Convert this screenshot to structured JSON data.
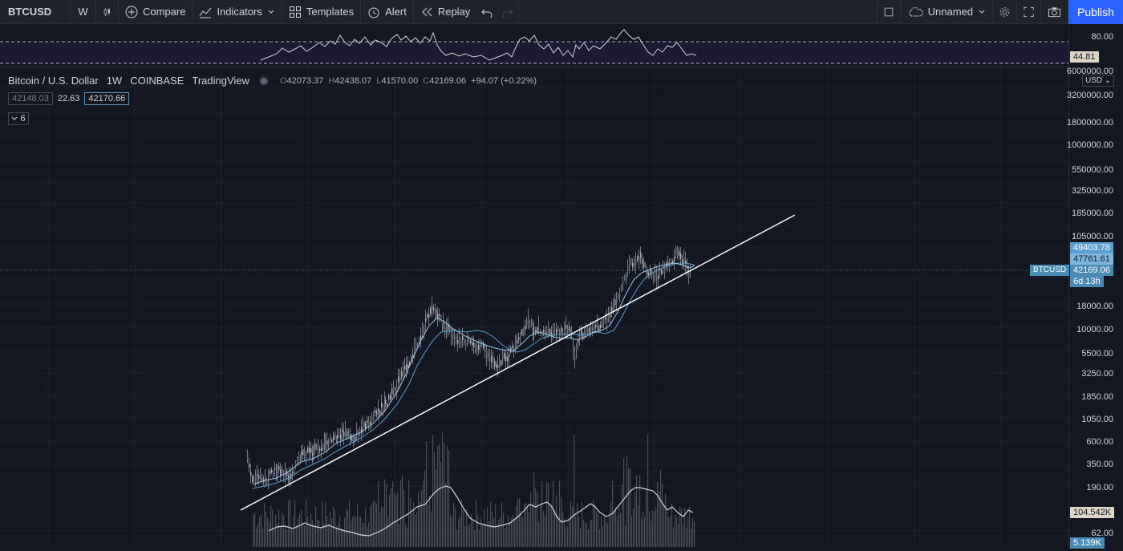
{
  "toolbar": {
    "symbol": "BTCUSD",
    "interval": "W",
    "compare_label": "Compare",
    "indicators_label": "Indicators",
    "templates_label": "Templates",
    "alert_label": "Alert",
    "replay_label": "Replay",
    "layout_name": "Unnamed",
    "publish_label": "Publish"
  },
  "legend": {
    "title": "Bitcoin / U.S. Dollar",
    "interval": "1W",
    "exchange": "COINBASE",
    "source": "TradingView",
    "open_label": "O",
    "open": "42073.37",
    "high_label": "H",
    "high": "42438.07",
    "low_label": "L",
    "low": "41570.00",
    "close_label": "C",
    "close": "42169.06",
    "change": "+94.07 (+0.22%)"
  },
  "indicator_row": {
    "value1": "42148.03",
    "value2": "22.63",
    "value3": "42170.66",
    "collapsed_count": "6"
  },
  "rsi_axis": {
    "top": "80.00",
    "current": "44.81"
  },
  "price_axis": {
    "currency": "USD",
    "ticks": [
      "6000000.00",
      "3200000.00",
      "1800000.00",
      "1000000.00",
      "550000.00",
      "325000.00",
      "185000.00",
      "105000.00",
      "18000.00",
      "10000.00",
      "5500.00",
      "3250.00",
      "1850.00",
      "1050.00",
      "600.00",
      "350.00",
      "190.00",
      "62.00"
    ],
    "badge_ma1": "49403.78",
    "badge_ma2": "47761.61",
    "badge_last": "42169.06",
    "badge_countdown": "6d 13h",
    "badge_volume": "104.542K",
    "badge_volume2": "5.139K",
    "symbol_tag": "BTCUSD"
  },
  "colors": {
    "background": "#131722",
    "accent": "#2962ff",
    "ma_blue": "#5a9fd4",
    "price_badge": "#4a8bb5"
  }
}
